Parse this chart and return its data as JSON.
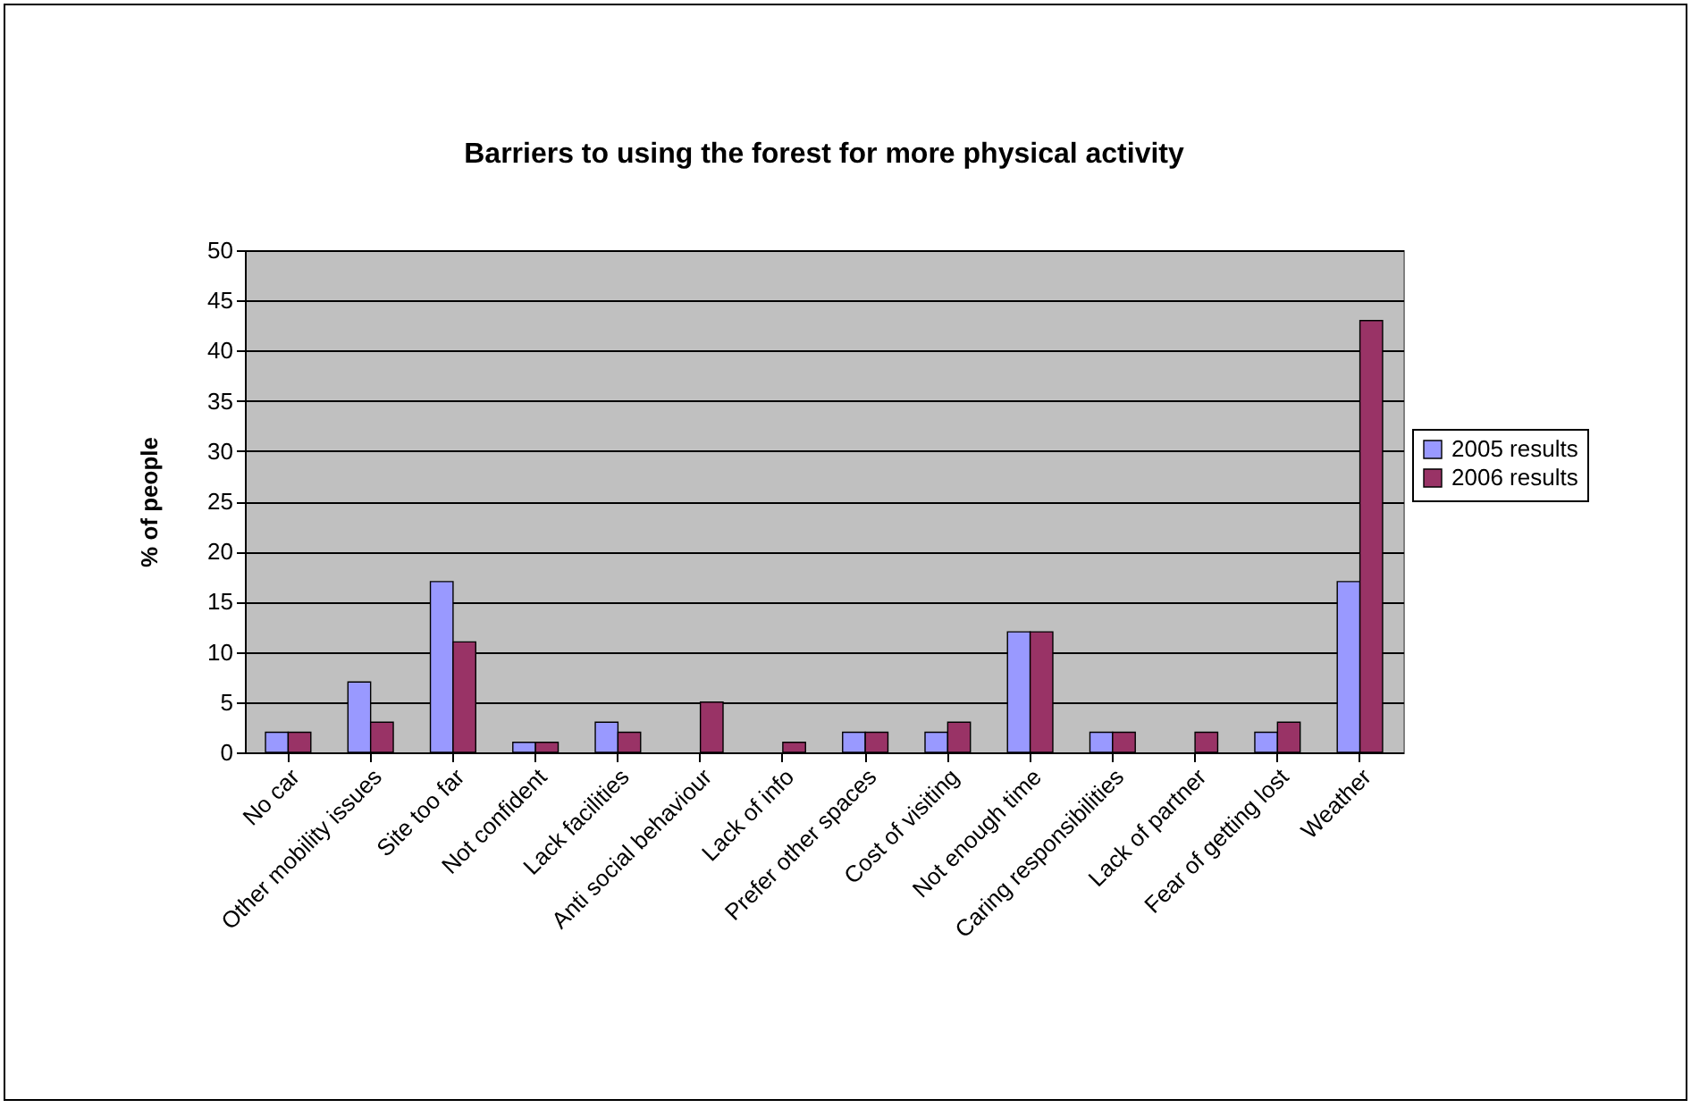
{
  "chart_data": {
    "type": "bar",
    "title": "Barriers to using the forest for more physical activity",
    "ylabel": "% of people",
    "categories": [
      "No car",
      "Other mobility issues",
      "Site too far",
      "Not confident",
      "Lack facilities",
      "Anti social behaviour",
      "Lack of info",
      "Prefer other spaces",
      "Cost of visiting",
      "Not enough time",
      "Caring responsibilities",
      "Lack of partner",
      "Fear of getting lost",
      "Weather"
    ],
    "series": [
      {
        "name": "2005 results",
        "color": "#9999ff",
        "values": [
          2,
          7,
          17,
          1,
          3,
          null,
          null,
          2,
          2,
          12,
          2,
          null,
          2,
          17
        ]
      },
      {
        "name": "2006 results",
        "color": "#993366",
        "values": [
          2,
          3,
          11,
          1,
          2,
          5,
          1,
          2,
          3,
          12,
          2,
          2,
          3,
          43
        ]
      }
    ],
    "ylim": [
      0,
      50
    ],
    "yticks": [
      0,
      5,
      10,
      15,
      20,
      25,
      30,
      35,
      40,
      45,
      50
    ],
    "grid": "y",
    "legend": "right"
  }
}
